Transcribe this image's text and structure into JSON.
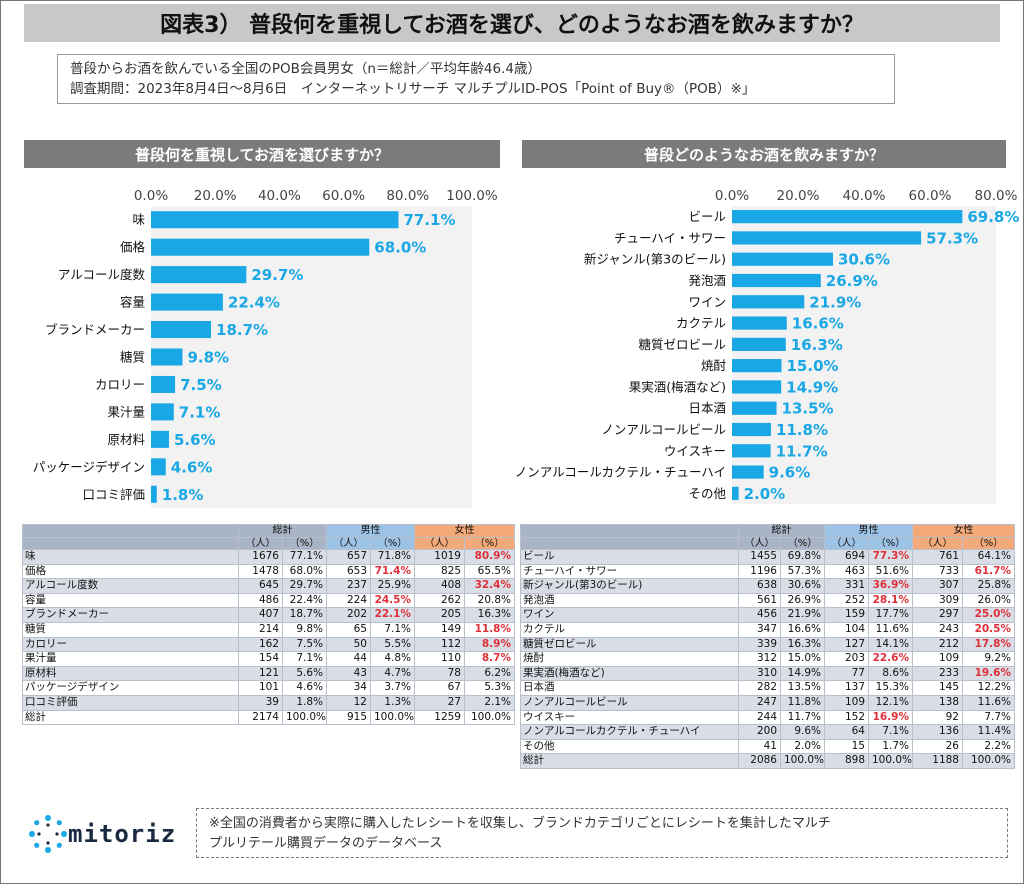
{
  "page": {
    "title": "図表3） 普段何を重視してお酒を選び、どのようなお酒を飲みますか？",
    "note_line1": "普段からお酒を飲んでいる全国のPOB会員男女（n＝総計／平均年齢46.4歳）",
    "note_line2": "調査期間：2023年8月4日～8月6日　インターネットリサーチ マルチプルID-POS「Point of Buy®（POB）※」",
    "footnote_line1": "※全国の消費者から実際に購入したレシートを収集し、ブランドカテゴリごとにレシートを集計したマルチ",
    "footnote_line2": "プルリテール購買データのデータベース",
    "logo_text": "mitoriz",
    "colors": {
      "bar": "#1aa7e6",
      "label": "#1aa7e6",
      "highlight": "#e0303a",
      "male_header": "#9cc3e6",
      "female_header": "#f4a97a",
      "total_header": "#a9b4c6"
    }
  },
  "chart_data": [
    {
      "type": "bar",
      "orientation": "horizontal",
      "title": "普段何を重視してお酒を選びますか？",
      "categories": [
        "味",
        "価格",
        "アルコール度数",
        "容量",
        "ブランドメーカー",
        "糖質",
        "カロリー",
        "果汁量",
        "原材料",
        "パッケージデザイン",
        "口コミ評価"
      ],
      "values": [
        77.1,
        68.0,
        29.7,
        22.4,
        18.7,
        9.8,
        7.5,
        7.1,
        5.6,
        4.6,
        1.8
      ],
      "value_labels": [
        "77.1%",
        "68.0%",
        "29.7%",
        "22.4%",
        "18.7%",
        "9.8%",
        "7.5%",
        "7.1%",
        "5.6%",
        "4.6%",
        "1.8%"
      ],
      "xlim": [
        0,
        100
      ],
      "ticks": [
        "0.0%",
        "20.0%",
        "40.0%",
        "60.0%",
        "80.0%",
        "100.0%"
      ],
      "tick_values": [
        0,
        20,
        40,
        60,
        80,
        100
      ],
      "axis_position": "top"
    },
    {
      "type": "bar",
      "orientation": "horizontal",
      "title": "普段どのようなお酒を飲みますか？",
      "categories": [
        "ビール",
        "チューハイ・サワー",
        "新ジャンル(第3のビール)",
        "発泡酒",
        "ワイン",
        "カクテル",
        "糖質ゼロビール",
        "焼酎",
        "果実酒(梅酒など)",
        "日本酒",
        "ノンアルコールビール",
        "ウイスキー",
        "ノンアルコールカクテル・チューハイ",
        "その他"
      ],
      "values": [
        69.8,
        57.3,
        30.6,
        26.9,
        21.9,
        16.6,
        16.3,
        15.0,
        14.9,
        13.5,
        11.8,
        11.7,
        9.6,
        2.0
      ],
      "value_labels": [
        "69.8%",
        "57.3%",
        "30.6%",
        "26.9%",
        "21.9%",
        "16.6%",
        "16.3%",
        "15.0%",
        "14.9%",
        "13.5%",
        "11.8%",
        "11.7%",
        "9.6%",
        "2.0%"
      ],
      "xlim": [
        0,
        80
      ],
      "ticks": [
        "0.0%",
        "20.0%",
        "40.0%",
        "60.0%",
        "80.0%"
      ],
      "tick_values": [
        0,
        20,
        40,
        60,
        80
      ],
      "axis_position": "top"
    }
  ],
  "tables": {
    "headers": {
      "total": "総計",
      "male": "男性",
      "female": "女性",
      "people": "（人）",
      "percent": "（%）"
    },
    "left": {
      "rows": [
        {
          "label": "味",
          "t_n": "1676",
          "t_p": "77.1%",
          "m_n": "657",
          "m_p": "71.8%",
          "f_n": "1019",
          "f_p": "80.9%",
          "hl": "f"
        },
        {
          "label": "価格",
          "t_n": "1478",
          "t_p": "68.0%",
          "m_n": "653",
          "m_p": "71.4%",
          "f_n": "825",
          "f_p": "65.5%",
          "hl": "m"
        },
        {
          "label": "アルコール度数",
          "t_n": "645",
          "t_p": "29.7%",
          "m_n": "237",
          "m_p": "25.9%",
          "f_n": "408",
          "f_p": "32.4%",
          "hl": "f"
        },
        {
          "label": "容量",
          "t_n": "486",
          "t_p": "22.4%",
          "m_n": "224",
          "m_p": "24.5%",
          "f_n": "262",
          "f_p": "20.8%",
          "hl": "m"
        },
        {
          "label": "ブランドメーカー",
          "t_n": "407",
          "t_p": "18.7%",
          "m_n": "202",
          "m_p": "22.1%",
          "f_n": "205",
          "f_p": "16.3%",
          "hl": "m"
        },
        {
          "label": "糖質",
          "t_n": "214",
          "t_p": "9.8%",
          "m_n": "65",
          "m_p": "7.1%",
          "f_n": "149",
          "f_p": "11.8%",
          "hl": "f"
        },
        {
          "label": "カロリー",
          "t_n": "162",
          "t_p": "7.5%",
          "m_n": "50",
          "m_p": "5.5%",
          "f_n": "112",
          "f_p": "8.9%",
          "hl": "f"
        },
        {
          "label": "果汁量",
          "t_n": "154",
          "t_p": "7.1%",
          "m_n": "44",
          "m_p": "4.8%",
          "f_n": "110",
          "f_p": "8.7%",
          "hl": "f"
        },
        {
          "label": "原材料",
          "t_n": "121",
          "t_p": "5.6%",
          "m_n": "43",
          "m_p": "4.7%",
          "f_n": "78",
          "f_p": "6.2%",
          "hl": ""
        },
        {
          "label": "パッケージデザイン",
          "t_n": "101",
          "t_p": "4.6%",
          "m_n": "34",
          "m_p": "3.7%",
          "f_n": "67",
          "f_p": "5.3%",
          "hl": ""
        },
        {
          "label": "口コミ評価",
          "t_n": "39",
          "t_p": "1.8%",
          "m_n": "12",
          "m_p": "1.3%",
          "f_n": "27",
          "f_p": "2.1%",
          "hl": ""
        },
        {
          "label": "総計",
          "t_n": "2174",
          "t_p": "100.0%",
          "m_n": "915",
          "m_p": "100.0%",
          "f_n": "1259",
          "f_p": "100.0%",
          "hl": ""
        }
      ]
    },
    "right": {
      "rows": [
        {
          "label": "ビール",
          "t_n": "1455",
          "t_p": "69.8%",
          "m_n": "694",
          "m_p": "77.3%",
          "f_n": "761",
          "f_p": "64.1%",
          "hl": "m"
        },
        {
          "label": "チューハイ・サワー",
          "t_n": "1196",
          "t_p": "57.3%",
          "m_n": "463",
          "m_p": "51.6%",
          "f_n": "733",
          "f_p": "61.7%",
          "hl": "f"
        },
        {
          "label": "新ジャンル(第3のビール)",
          "t_n": "638",
          "t_p": "30.6%",
          "m_n": "331",
          "m_p": "36.9%",
          "f_n": "307",
          "f_p": "25.8%",
          "hl": "m"
        },
        {
          "label": "発泡酒",
          "t_n": "561",
          "t_p": "26.9%",
          "m_n": "252",
          "m_p": "28.1%",
          "f_n": "309",
          "f_p": "26.0%",
          "hl": "m"
        },
        {
          "label": "ワイン",
          "t_n": "456",
          "t_p": "21.9%",
          "m_n": "159",
          "m_p": "17.7%",
          "f_n": "297",
          "f_p": "25.0%",
          "hl": "f"
        },
        {
          "label": "カクテル",
          "t_n": "347",
          "t_p": "16.6%",
          "m_n": "104",
          "m_p": "11.6%",
          "f_n": "243",
          "f_p": "20.5%",
          "hl": "f"
        },
        {
          "label": "糖質ゼロビール",
          "t_n": "339",
          "t_p": "16.3%",
          "m_n": "127",
          "m_p": "14.1%",
          "f_n": "212",
          "f_p": "17.8%",
          "hl": "f"
        },
        {
          "label": "焼酎",
          "t_n": "312",
          "t_p": "15.0%",
          "m_n": "203",
          "m_p": "22.6%",
          "f_n": "109",
          "f_p": "9.2%",
          "hl": "m"
        },
        {
          "label": "果実酒(梅酒など)",
          "t_n": "310",
          "t_p": "14.9%",
          "m_n": "77",
          "m_p": "8.6%",
          "f_n": "233",
          "f_p": "19.6%",
          "hl": "f"
        },
        {
          "label": "日本酒",
          "t_n": "282",
          "t_p": "13.5%",
          "m_n": "137",
          "m_p": "15.3%",
          "f_n": "145",
          "f_p": "12.2%",
          "hl": ""
        },
        {
          "label": "ノンアルコールビール",
          "t_n": "247",
          "t_p": "11.8%",
          "m_n": "109",
          "m_p": "12.1%",
          "f_n": "138",
          "f_p": "11.6%",
          "hl": ""
        },
        {
          "label": "ウイスキー",
          "t_n": "244",
          "t_p": "11.7%",
          "m_n": "152",
          "m_p": "16.9%",
          "f_n": "92",
          "f_p": "7.7%",
          "hl": "m"
        },
        {
          "label": "ノンアルコールカクテル・チューハイ",
          "t_n": "200",
          "t_p": "9.6%",
          "m_n": "64",
          "m_p": "7.1%",
          "f_n": "136",
          "f_p": "11.4%",
          "hl": ""
        },
        {
          "label": "その他",
          "t_n": "41",
          "t_p": "2.0%",
          "m_n": "15",
          "m_p": "1.7%",
          "f_n": "26",
          "f_p": "2.2%",
          "hl": ""
        },
        {
          "label": "総計",
          "t_n": "2086",
          "t_p": "100.0%",
          "m_n": "898",
          "m_p": "100.0%",
          "f_n": "1188",
          "f_p": "100.0%",
          "hl": ""
        }
      ]
    }
  }
}
